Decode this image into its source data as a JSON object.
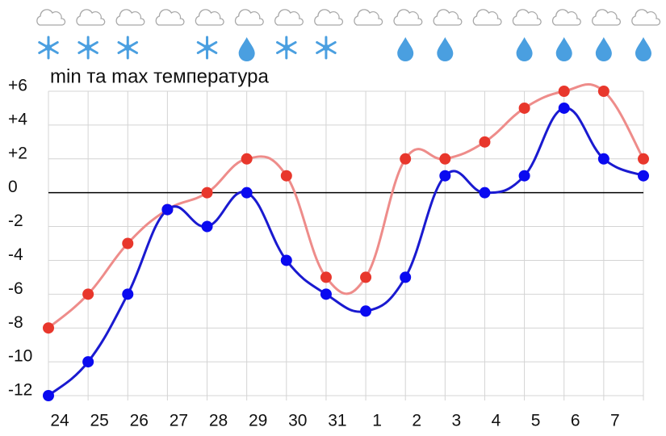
{
  "chart_data": {
    "type": "line",
    "title": "min та max температура",
    "categories": [
      "24",
      "25",
      "26",
      "27",
      "28",
      "29",
      "30",
      "31",
      "1",
      "2",
      "3",
      "4",
      "5",
      "6",
      "7",
      null
    ],
    "series": [
      {
        "color": "#ee8c8a",
        "marker_color": "#e8372c",
        "values": [
          -8,
          -6,
          -3,
          -1,
          0,
          2,
          1,
          -5,
          -5,
          2,
          2,
          3,
          5,
          6,
          6,
          2
        ]
      },
      {
        "color": "#1a1ad0",
        "marker_color": "#0a0af0",
        "values": [
          -12,
          -10,
          -6,
          -1,
          -2,
          0,
          -4,
          -6,
          -7,
          -5,
          1,
          0,
          1,
          5,
          2,
          1
        ]
      }
    ],
    "ylim": [
      -12,
      6
    ],
    "yticks": [
      {
        "value": 6,
        "label": "+6"
      },
      {
        "value": 4,
        "label": "+4"
      },
      {
        "value": 2,
        "label": "+2"
      },
      0,
      -2,
      -4,
      -6,
      -8,
      -10,
      -12
    ],
    "grid": true
  }
}
